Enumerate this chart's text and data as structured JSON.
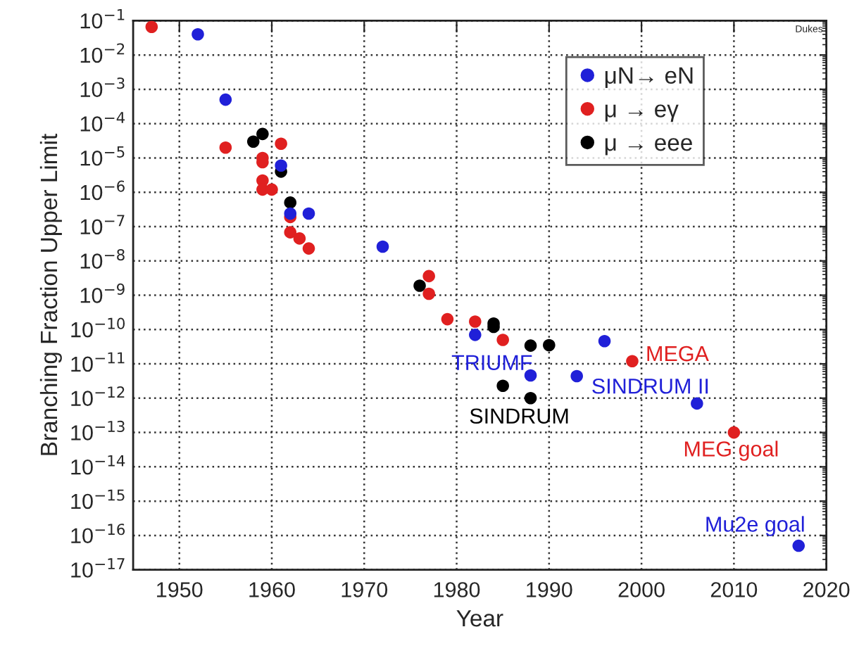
{
  "chart_data": {
    "type": "scatter",
    "xlabel": "Year",
    "ylabel": "Branching Fraction Upper Limit",
    "log": "y",
    "grid": true,
    "legend": "top right",
    "marker": "circle",
    "xlim": [
      1945,
      2020
    ],
    "xticks": [
      1950,
      1960,
      1970,
      1980,
      1990,
      2000,
      2010,
      2020
    ],
    "ylim": [
      1e-17,
      0.1
    ],
    "yticks": [
      {
        "value": 1e-17,
        "label": "10$^{−17}$"
      },
      {
        "value": 1e-16,
        "label": "10$^{−16}$"
      },
      {
        "value": 1e-15,
        "label": "10$^{−15}$"
      },
      {
        "value": 1e-14,
        "label": "10$^{−14}$"
      },
      {
        "value": 1e-13,
        "label": "10$^{−13}$"
      },
      {
        "value": 1e-12,
        "label": "10$^{−12}$"
      },
      {
        "value": 1e-11,
        "label": "10$^{−11}$"
      },
      {
        "value": 1e-10,
        "label": "10$^{−10}$"
      },
      {
        "value": 1e-09,
        "label": "10$^{−9}$"
      },
      {
        "value": 1e-08,
        "label": "10$^{−8}$"
      },
      {
        "value": 1e-07,
        "label": "10$^{−7}$"
      },
      {
        "value": 1e-06,
        "label": "10$^{−6}$"
      },
      {
        "value": 1e-05,
        "label": "10$^{−5}$"
      },
      {
        "value": 0.0001,
        "label": "10$^{−4}$"
      },
      {
        "value": 0.001,
        "label": "10$^{−3}$"
      },
      {
        "value": 0.01,
        "label": "10$^{−2}$"
      },
      {
        "value": 0.1,
        "label": "10$^{−1}$"
      }
    ],
    "series": [
      {
        "name": "μN→ eN",
        "color": "#2020d8",
        "x": [
          1952,
          1955,
          1961,
          1962,
          1964,
          1972,
          1982,
          1988,
          1993,
          1996,
          2006,
          2017
        ],
        "values": [
          0.04,
          0.0005,
          6e-06,
          2.4e-07,
          2.4e-07,
          2.6e-08,
          7e-11,
          4.6e-12,
          4.4e-12,
          4.6e-11,
          7e-13,
          5e-17
        ]
      },
      {
        "name": "μ → eγ",
        "color": "#e02020",
        "x": [
          1947,
          1955,
          1959,
          1959,
          1961,
          1959,
          1959,
          1960,
          1962,
          1962,
          1963,
          1964,
          1977,
          1977,
          1979,
          1982,
          1985,
          1999,
          2010
        ],
        "values": [
          0.066,
          2e-05,
          1e-05,
          7.5e-06,
          2.6e-05,
          2.2e-06,
          1.2e-06,
          1.2e-06,
          1.9e-07,
          6.8e-08,
          4.5e-08,
          2.3e-08,
          3.6e-09,
          1.1e-09,
          2e-10,
          1.7e-10,
          5e-11,
          1.2e-11,
          1e-13
        ]
      },
      {
        "name": "μ → eee",
        "color": "#000000",
        "x": [
          1958,
          1959,
          1961,
          1962,
          1976,
          1984,
          1984,
          1985,
          1988,
          1988,
          1990
        ],
        "values": [
          3e-05,
          5e-05,
          4e-06,
          5e-07,
          1.9e-09,
          1.5e-10,
          1.2e-10,
          2.3e-12,
          3.4e-11,
          1e-12,
          3.5e-11
        ]
      }
    ],
    "annotations": [
      {
        "text": "TRIUMF",
        "x": 1982,
        "y": 7e-11
      },
      {
        "text": "SINDRUM",
        "x": 1988,
        "y": 1e-12
      },
      {
        "text": "MEGA",
        "x": 1999,
        "y": 1.2e-11
      },
      {
        "text": "SINDRUM II",
        "x": 2006,
        "y": 7e-13
      },
      {
        "text": "MEG goal",
        "x": 2010,
        "y": 1e-13
      },
      {
        "text": "Mu2e goal",
        "x": 2017,
        "y": 5e-17
      },
      "Dukes"
    ]
  }
}
